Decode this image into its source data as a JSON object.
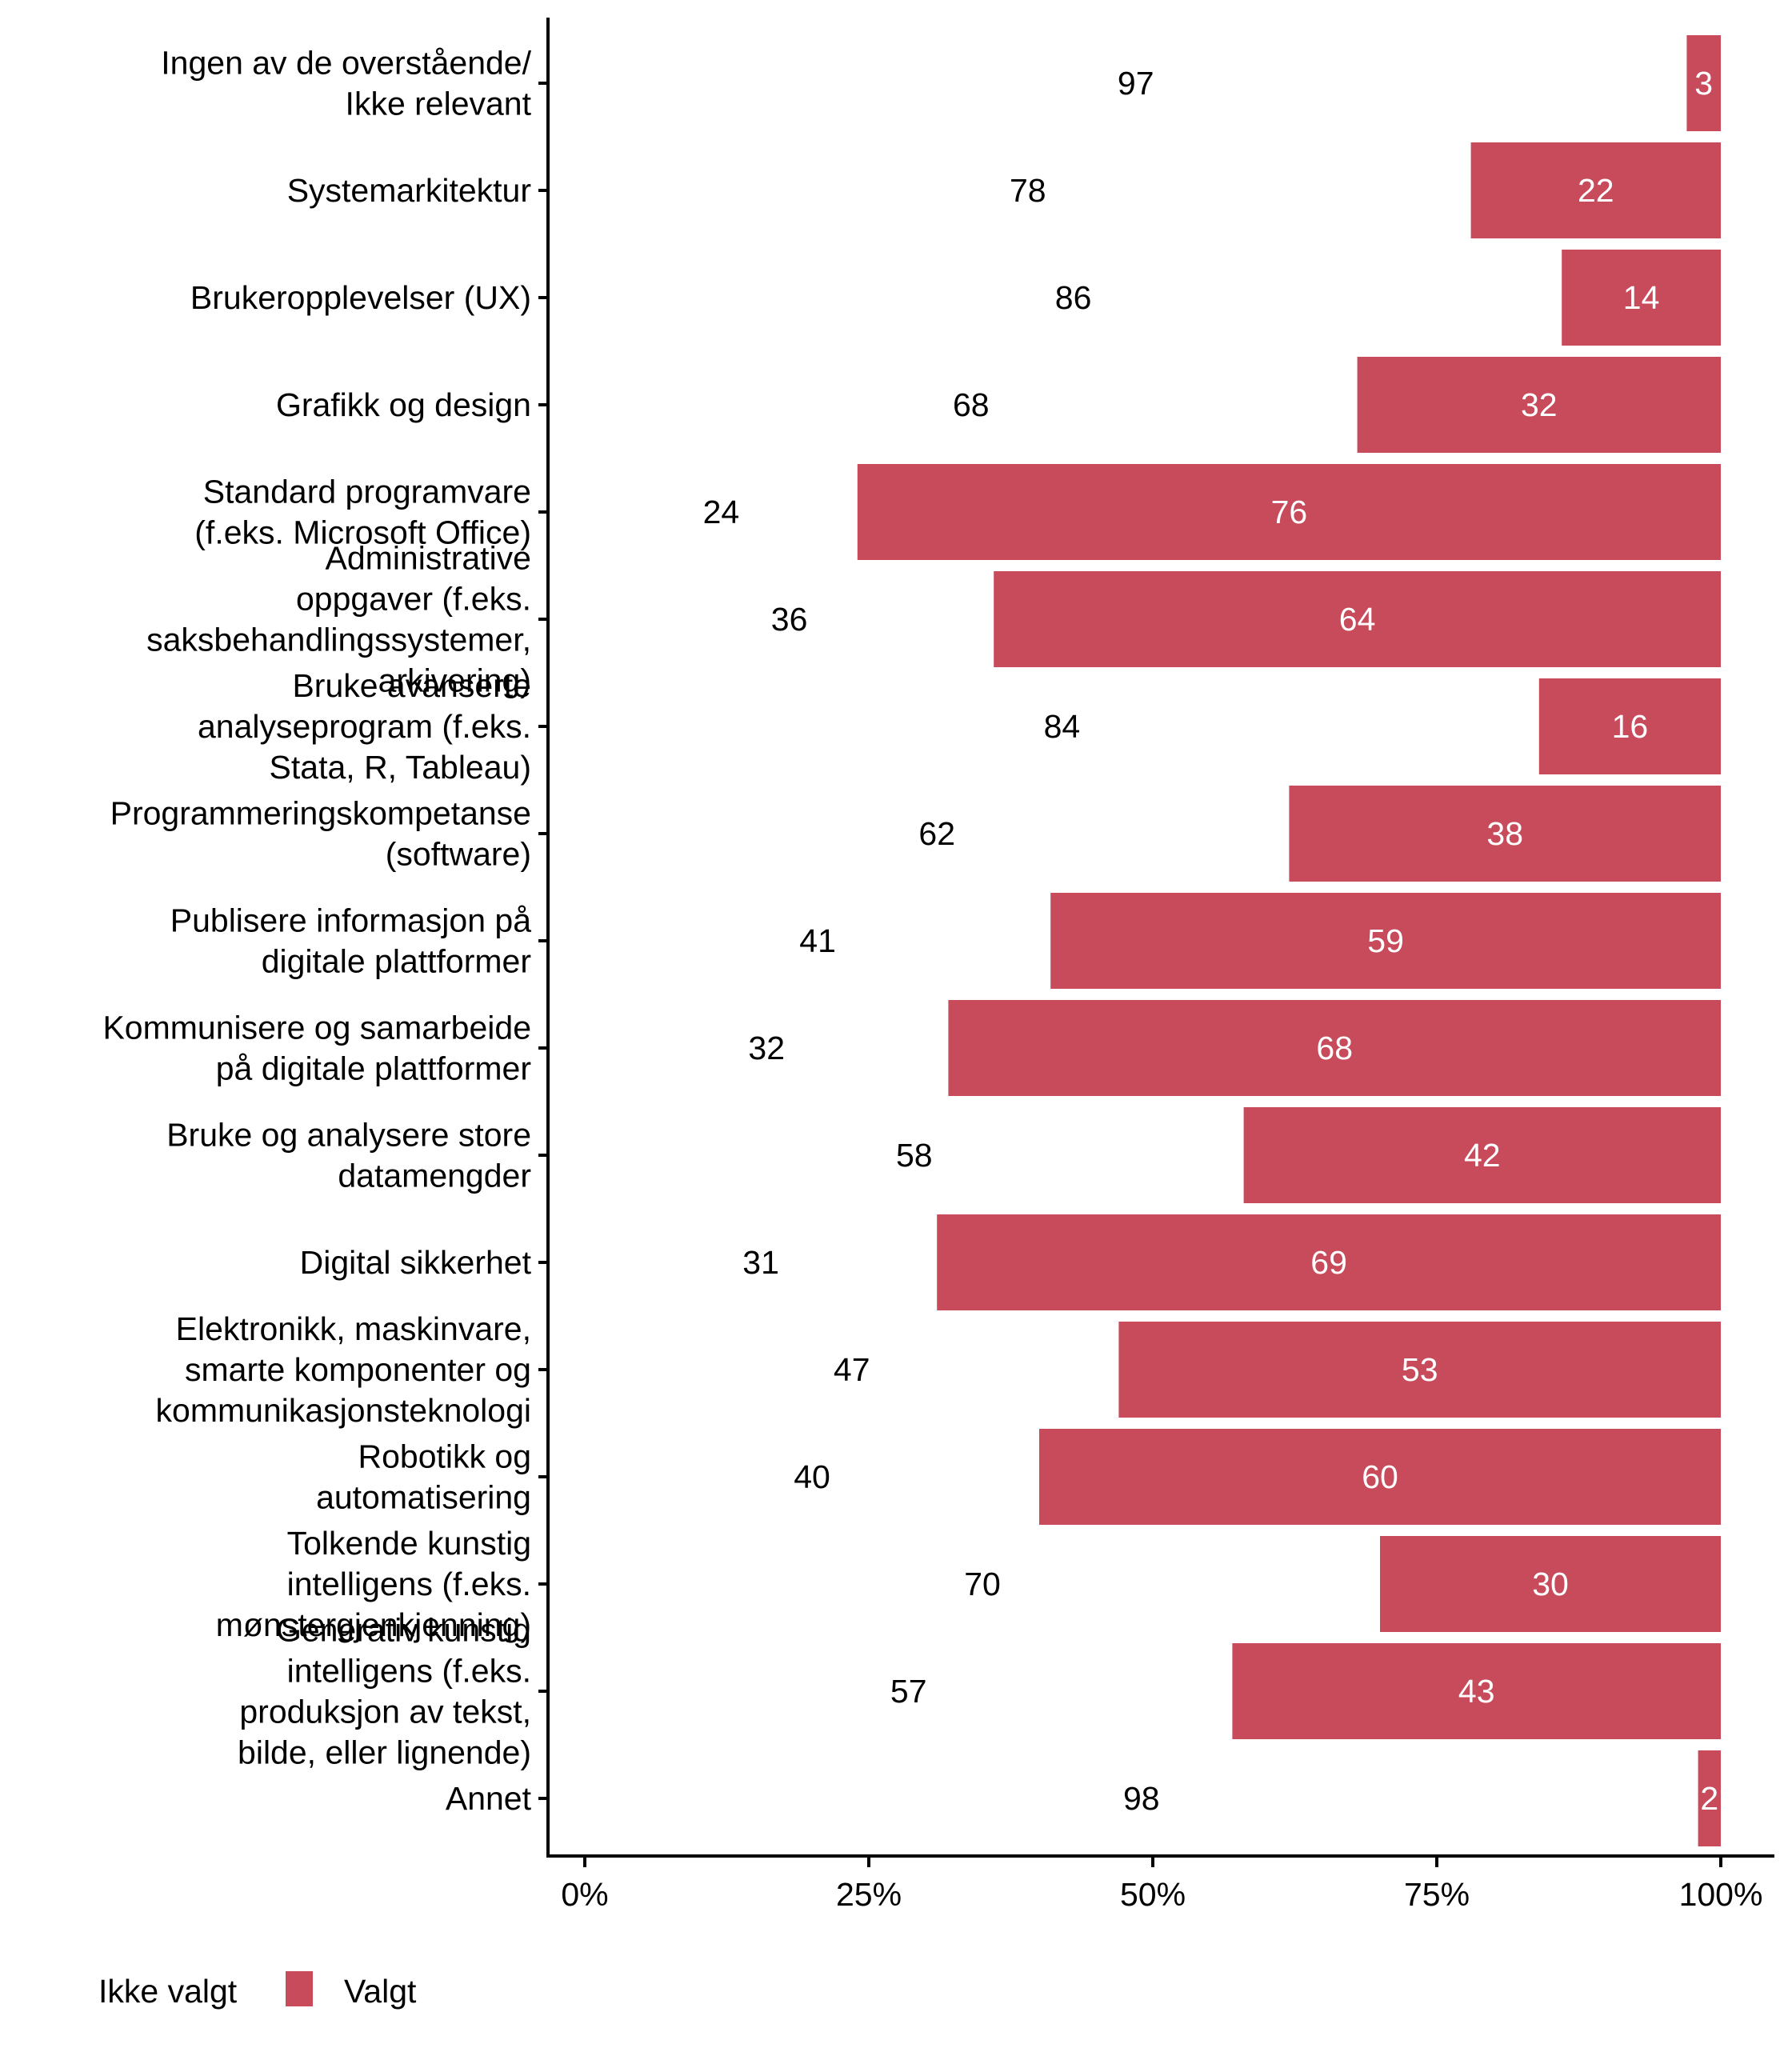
{
  "chart_data": {
    "type": "bar",
    "orientation": "horizontal",
    "stacked": true,
    "normalized_percent": true,
    "title": "",
    "xlabel": "",
    "ylabel": "",
    "xlim": [
      0,
      100
    ],
    "x_ticks": [
      "0%",
      "25%",
      "50%",
      "75%",
      "100%"
    ],
    "x_tick_values": [
      0,
      25,
      50,
      75,
      100
    ],
    "grid": false,
    "legend_position": "bottom-left",
    "categories": [
      [
        "Ingen av de overstående/",
        "Ikke relevant"
      ],
      [
        "Systemarkitektur"
      ],
      [
        "Brukeropplevelser (UX)"
      ],
      [
        "Grafikk og design"
      ],
      [
        "Standard programvare",
        "(f.eks. Microsoft Office)"
      ],
      [
        "Administrative",
        "oppgaver (f.eks.",
        "saksbehandlingssystemer,",
        "arkivering)"
      ],
      [
        "Bruke avanserte",
        "analyseprogram (f.eks.",
        "Stata, R, Tableau)"
      ],
      [
        "Programmeringskompetanse",
        "(software)"
      ],
      [
        "Publisere informasjon på",
        "digitale plattformer"
      ],
      [
        "Kommunisere og samarbeide",
        "på digitale plattformer"
      ],
      [
        "Bruke og analysere store",
        "datamengder"
      ],
      [
        "Digital sikkerhet"
      ],
      [
        "Elektronikk, maskinvare,",
        "smarte komponenter og",
        "kommunikasjonsteknologi"
      ],
      [
        "Robotikk og",
        "automatisering"
      ],
      [
        "Tolkende kunstig",
        "intelligens (f.eks.",
        "mønstergjenkjenning)"
      ],
      [
        "Generativ kunstig",
        "intelligens (f.eks.",
        "produksjon av tekst,",
        "bilde, eller lignende)"
      ],
      [
        "Annet"
      ]
    ],
    "series": [
      {
        "name": "Ikke valgt",
        "color": "#FFFFFF",
        "label_color": "#000000",
        "values": [
          97,
          78,
          86,
          68,
          24,
          36,
          84,
          62,
          41,
          32,
          58,
          31,
          47,
          40,
          70,
          57,
          98
        ]
      },
      {
        "name": "Valgt",
        "color": "#C84B5C",
        "label_color": "#FFFFFF",
        "values": [
          3,
          22,
          14,
          32,
          76,
          64,
          16,
          38,
          59,
          68,
          42,
          69,
          53,
          60,
          30,
          43,
          2
        ]
      }
    ],
    "legend": [
      {
        "label": "Ikke valgt",
        "color": "#FFFFFF"
      },
      {
        "label": "Valgt",
        "color": "#C84B5C"
      }
    ]
  }
}
